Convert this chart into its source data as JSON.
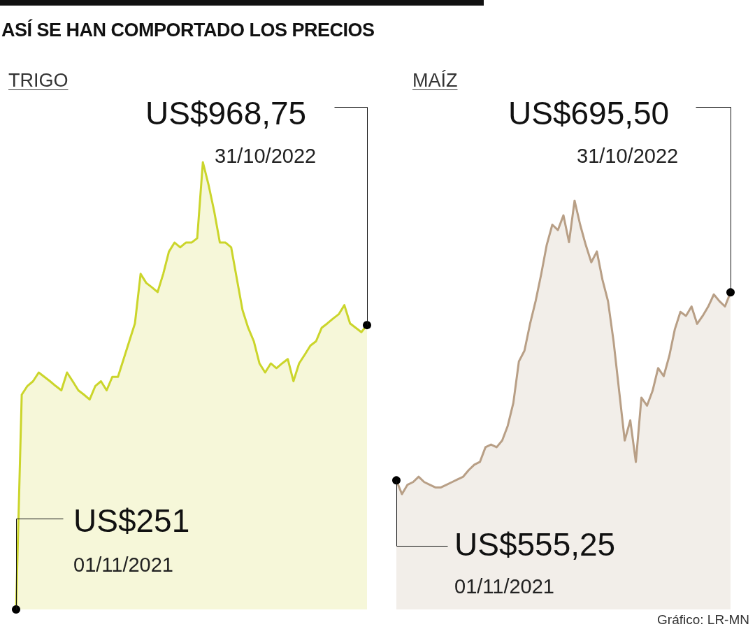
{
  "chart_data": [
    {
      "type": "area",
      "title": "ASÍ SE HAN COMPORTADO LOS PRECIOS",
      "subtitle": "TRIGO",
      "marker": "none",
      "grid": false,
      "tick_labels": false,
      "categories": [
        null,
        null,
        null,
        null,
        null,
        null,
        null,
        null,
        null,
        null,
        null,
        null,
        null,
        null,
        null,
        null,
        null,
        null,
        null,
        null,
        null,
        null,
        null,
        null,
        null,
        null,
        null,
        null,
        null,
        null,
        null,
        null,
        null,
        null,
        null,
        null,
        null,
        null,
        null,
        null,
        null,
        null,
        null,
        null,
        null,
        null,
        null,
        null,
        null,
        null,
        null,
        null,
        null,
        null,
        null,
        null,
        null,
        null,
        null,
        null,
        null,
        null,
        null
      ],
      "series": [
        {
          "color": "#cbd52b",
          "values": [
            251,
            793,
            815,
            827,
            849,
            838,
            827,
            815,
            804,
            849,
            827,
            804,
            793,
            781,
            815,
            827,
            804,
            838,
            838,
            883,
            928,
            973,
            1098,
            1075,
            1064,
            1052,
            1098,
            1154,
            1177,
            1165,
            1177,
            1177,
            1188,
            1380,
            1323,
            1256,
            1177,
            1177,
            1165,
            1086,
            1007,
            962,
            928,
            872,
            849,
            872,
            860,
            872,
            883,
            827,
            872,
            894,
            917,
            928,
            962,
            973,
            985,
            996,
            1019,
            973,
            962,
            951,
            968.75
          ],
          "value_labels": [
            "US$251",
            null,
            null,
            null,
            null,
            null,
            null,
            null,
            null,
            null,
            null,
            null,
            null,
            null,
            null,
            null,
            null,
            null,
            null,
            null,
            null,
            null,
            null,
            null,
            null,
            null,
            null,
            null,
            null,
            null,
            null,
            null,
            null,
            null,
            null,
            null,
            null,
            null,
            null,
            null,
            null,
            null,
            null,
            null,
            null,
            null,
            null,
            null,
            null,
            null,
            null,
            null,
            null,
            null,
            null,
            null,
            null,
            null,
            null,
            null,
            null,
            null,
            "US$968,75"
          ]
        }
      ],
      "annotations": [
        "01/11/2021",
        "31/10/2022"
      ]
    },
    {
      "type": "area",
      "subtitle": "MAÍZ",
      "marker": "none",
      "grid": false,
      "tick_labels": false,
      "categories": [
        null,
        null,
        null,
        null,
        null,
        null,
        null,
        null,
        null,
        null,
        null,
        null,
        null,
        null,
        null,
        null,
        null,
        null,
        null,
        null,
        null,
        null,
        null,
        null,
        null,
        null,
        null,
        null,
        null,
        null,
        null,
        null,
        null,
        null,
        null,
        null,
        null,
        null,
        null,
        null,
        null,
        null,
        null,
        null,
        null,
        null,
        null,
        null,
        null,
        null,
        null,
        null,
        null,
        null,
        null,
        null,
        null,
        null,
        null,
        null,
        null
      ],
      "series": [
        {
          "color": "#b89f86",
          "values": [
            555.25,
            545,
            552,
            554,
            558,
            554,
            552,
            550,
            550,
            552,
            554,
            556,
            558,
            563,
            567,
            569,
            580,
            582,
            580,
            585,
            596,
            613,
            644,
            652,
            672,
            689,
            709,
            731,
            746,
            742,
            753,
            733,
            764,
            746,
            731,
            718,
            726,
            705,
            689,
            659,
            622,
            585,
            600,
            569,
            617,
            611,
            622,
            639,
            633,
            648,
            668,
            681,
            678,
            685,
            672,
            678,
            685,
            694,
            689,
            685,
            695.5
          ],
          "value_labels": [
            "US$555,25",
            null,
            null,
            null,
            null,
            null,
            null,
            null,
            null,
            null,
            null,
            null,
            null,
            null,
            null,
            null,
            null,
            null,
            null,
            null,
            null,
            null,
            null,
            null,
            null,
            null,
            null,
            null,
            null,
            null,
            null,
            null,
            null,
            null,
            null,
            null,
            null,
            null,
            null,
            null,
            null,
            null,
            null,
            null,
            null,
            null,
            null,
            null,
            null,
            null,
            null,
            null,
            null,
            null,
            null,
            null,
            null,
            null,
            null,
            null,
            "US$695,50"
          ]
        }
      ],
      "annotations": [
        "01/11/2021",
        "31/10/2022",
        "Gráfico: LR-MN"
      ]
    }
  ]
}
